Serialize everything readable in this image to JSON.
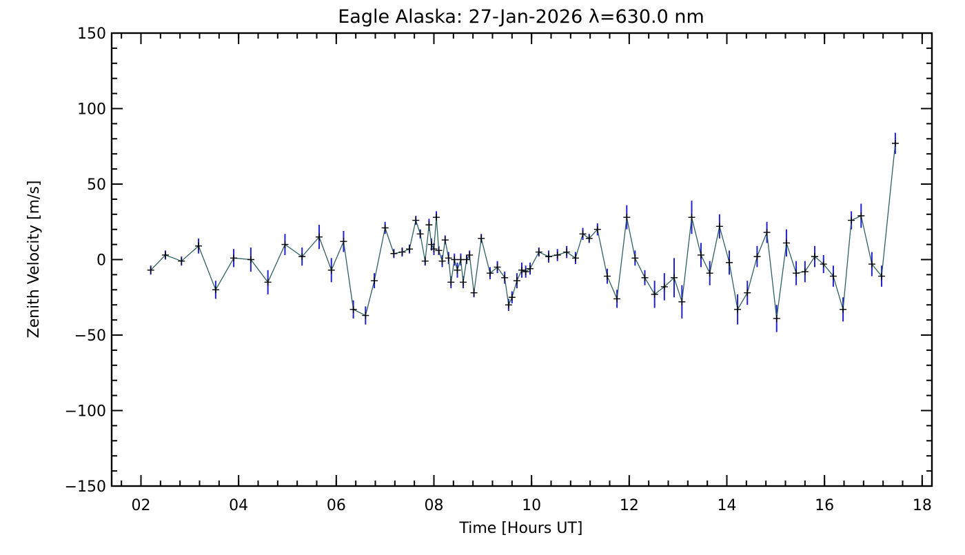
{
  "chart_data": {
    "type": "line",
    "title": "Eagle Alaska: 27-Jan-2026 λ=630.0 nm",
    "xlabel": "Time [Hours UT]",
    "ylabel": "Zenith Velocity [m/s]",
    "xlim": [
      1.4,
      18.2
    ],
    "ylim": [
      -150,
      150
    ],
    "x_ticks": [
      {
        "value": 2,
        "label": "02"
      },
      {
        "value": 4,
        "label": "04"
      },
      {
        "value": 6,
        "label": "06"
      },
      {
        "value": 8,
        "label": "08"
      },
      {
        "value": 10,
        "label": "10"
      },
      {
        "value": 12,
        "label": "12"
      },
      {
        "value": 14,
        "label": "14"
      },
      {
        "value": 16,
        "label": "16"
      },
      {
        "value": 18,
        "label": "18"
      }
    ],
    "y_ticks": [
      {
        "value": 150,
        "label": "150"
      },
      {
        "value": 100,
        "label": "100"
      },
      {
        "value": 50,
        "label": "50"
      },
      {
        "value": 0,
        "label": "0"
      },
      {
        "value": -50,
        "label": "−50"
      },
      {
        "value": -100,
        "label": "−100"
      },
      {
        "value": -150,
        "label": "−150"
      }
    ],
    "x_minor_step": 0.4,
    "y_minor_step": 10,
    "grid": false,
    "colors": {
      "line": "#2f5f5f",
      "marker": "#000000",
      "error_bar": "#2020d0",
      "axes": "#000000"
    },
    "series": [
      {
        "points": [
          {
            "x": 2.2,
            "y": -7,
            "err": 3
          },
          {
            "x": 2.5,
            "y": 3,
            "err": 3
          },
          {
            "x": 2.83,
            "y": -1,
            "err": 3
          },
          {
            "x": 3.18,
            "y": 9,
            "err": 5
          },
          {
            "x": 3.53,
            "y": -20,
            "err": 6
          },
          {
            "x": 3.9,
            "y": 1,
            "err": 6
          },
          {
            "x": 4.25,
            "y": 0,
            "err": 8
          },
          {
            "x": 4.6,
            "y": -15,
            "err": 8
          },
          {
            "x": 4.95,
            "y": 10,
            "err": 7
          },
          {
            "x": 5.3,
            "y": 2,
            "err": 6
          },
          {
            "x": 5.65,
            "y": 15,
            "err": 8
          },
          {
            "x": 5.9,
            "y": -7,
            "err": 8
          },
          {
            "x": 6.15,
            "y": 12,
            "err": 7
          },
          {
            "x": 6.35,
            "y": -33,
            "err": 6
          },
          {
            "x": 6.6,
            "y": -37,
            "err": 6
          },
          {
            "x": 6.78,
            "y": -14,
            "err": 5
          },
          {
            "x": 7.0,
            "y": 21,
            "err": 4
          },
          {
            "x": 7.18,
            "y": 4,
            "err": 3
          },
          {
            "x": 7.35,
            "y": 5,
            "err": 3
          },
          {
            "x": 7.5,
            "y": 7,
            "err": 3
          },
          {
            "x": 7.63,
            "y": 26,
            "err": 3
          },
          {
            "x": 7.72,
            "y": 17,
            "err": 3
          },
          {
            "x": 7.82,
            "y": -1,
            "err": 3
          },
          {
            "x": 7.9,
            "y": 23,
            "err": 4
          },
          {
            "x": 7.95,
            "y": 10,
            "err": 4
          },
          {
            "x": 8.0,
            "y": 7,
            "err": 4
          },
          {
            "x": 8.05,
            "y": 28,
            "err": 4
          },
          {
            "x": 8.1,
            "y": 6,
            "err": 3
          },
          {
            "x": 8.17,
            "y": -1,
            "err": 4
          },
          {
            "x": 8.23,
            "y": 13,
            "err": 3
          },
          {
            "x": 8.3,
            "y": 1,
            "err": 4
          },
          {
            "x": 8.35,
            "y": -15,
            "err": 4
          },
          {
            "x": 8.42,
            "y": 0,
            "err": 4
          },
          {
            "x": 8.48,
            "y": -7,
            "err": 5
          },
          {
            "x": 8.55,
            "y": 0,
            "err": 4
          },
          {
            "x": 8.6,
            "y": -15,
            "err": 4
          },
          {
            "x": 8.67,
            "y": 0,
            "err": 3
          },
          {
            "x": 8.73,
            "y": 3,
            "err": 3
          },
          {
            "x": 8.82,
            "y": -22,
            "err": 3
          },
          {
            "x": 8.97,
            "y": 14,
            "err": 3
          },
          {
            "x": 9.15,
            "y": -9,
            "err": 4
          },
          {
            "x": 9.3,
            "y": -5,
            "err": 4
          },
          {
            "x": 9.45,
            "y": -12,
            "err": 4
          },
          {
            "x": 9.53,
            "y": -30,
            "err": 4
          },
          {
            "x": 9.6,
            "y": -25,
            "err": 4
          },
          {
            "x": 9.7,
            "y": -14,
            "err": 5
          },
          {
            "x": 9.8,
            "y": -7,
            "err": 5
          },
          {
            "x": 9.88,
            "y": -8,
            "err": 4
          },
          {
            "x": 9.97,
            "y": -6,
            "err": 4
          },
          {
            "x": 10.15,
            "y": 5,
            "err": 3
          },
          {
            "x": 10.35,
            "y": 2,
            "err": 4
          },
          {
            "x": 10.53,
            "y": 3,
            "err": 4
          },
          {
            "x": 10.72,
            "y": 5,
            "err": 4
          },
          {
            "x": 10.9,
            "y": 1,
            "err": 4
          },
          {
            "x": 11.05,
            "y": 17,
            "err": 4
          },
          {
            "x": 11.18,
            "y": 14,
            "err": 3
          },
          {
            "x": 11.35,
            "y": 20,
            "err": 4
          },
          {
            "x": 11.55,
            "y": -11,
            "err": 5
          },
          {
            "x": 11.75,
            "y": -26,
            "err": 6
          },
          {
            "x": 11.95,
            "y": 28,
            "err": 8
          },
          {
            "x": 12.12,
            "y": 1,
            "err": 5
          },
          {
            "x": 12.32,
            "y": -12,
            "err": 5
          },
          {
            "x": 12.52,
            "y": -23,
            "err": 9
          },
          {
            "x": 12.72,
            "y": -18,
            "err": 9
          },
          {
            "x": 12.92,
            "y": -12,
            "err": 13
          },
          {
            "x": 13.08,
            "y": -28,
            "err": 11
          },
          {
            "x": 13.28,
            "y": 28,
            "err": 11
          },
          {
            "x": 13.47,
            "y": 3,
            "err": 8
          },
          {
            "x": 13.65,
            "y": -9,
            "err": 8
          },
          {
            "x": 13.85,
            "y": 22,
            "err": 8
          },
          {
            "x": 14.05,
            "y": -2,
            "err": 8
          },
          {
            "x": 14.22,
            "y": -33,
            "err": 10
          },
          {
            "x": 14.42,
            "y": -22,
            "err": 8
          },
          {
            "x": 14.62,
            "y": 2,
            "err": 7
          },
          {
            "x": 14.82,
            "y": 18,
            "err": 7
          },
          {
            "x": 15.02,
            "y": -39,
            "err": 9
          },
          {
            "x": 15.22,
            "y": 11,
            "err": 9
          },
          {
            "x": 15.42,
            "y": -9,
            "err": 8
          },
          {
            "x": 15.6,
            "y": -8,
            "err": 7
          },
          {
            "x": 15.8,
            "y": 2,
            "err": 7
          },
          {
            "x": 15.98,
            "y": -3,
            "err": 6
          },
          {
            "x": 16.18,
            "y": -11,
            "err": 7
          },
          {
            "x": 16.38,
            "y": -33,
            "err": 8
          },
          {
            "x": 16.55,
            "y": 26,
            "err": 6
          },
          {
            "x": 16.75,
            "y": 29,
            "err": 8
          },
          {
            "x": 16.97,
            "y": -3,
            "err": 8
          },
          {
            "x": 17.17,
            "y": -11,
            "err": 7
          },
          {
            "x": 17.45,
            "y": 77,
            "err": 7
          }
        ]
      }
    ]
  }
}
